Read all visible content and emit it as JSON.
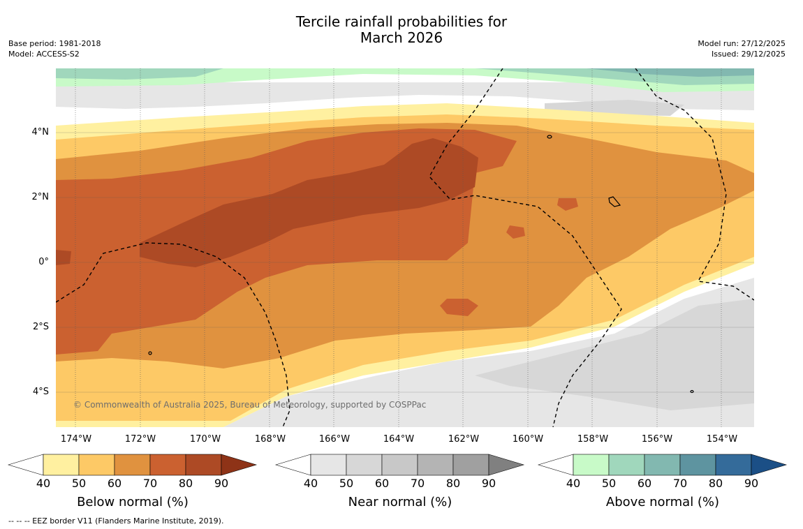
{
  "title": {
    "line1": "Tercile rainfall probabilities for",
    "line2": "March 2026"
  },
  "meta": {
    "base_period": "Base period: 1981-2018",
    "model": "Model: ACCESS-S2",
    "model_run": "Model run: 27/12/2025",
    "issued": "Issued: 29/12/2025"
  },
  "axes": {
    "lat_labels": [
      "4°N",
      "2°N",
      "0°",
      "2°S",
      "4°S"
    ],
    "lon_labels": [
      "174°W",
      "172°W",
      "170°W",
      "168°W",
      "166°W",
      "164°W",
      "162°W",
      "160°W",
      "158°W",
      "156°W",
      "154°W"
    ]
  },
  "map": {
    "copyright": "© Commonwealth of Australia 2025, Bureau of Meteorology, supported by COSPPac"
  },
  "colorbars": [
    {
      "label": "Below normal (%)",
      "ticks": [
        "40",
        "50",
        "60",
        "70",
        "80",
        "90"
      ],
      "colors": [
        "#ffffff",
        "#fff0a0",
        "#fdc966",
        "#e0923f",
        "#cb6130",
        "#ad4a25",
        "#8e3317"
      ]
    },
    {
      "label": "Near normal (%)",
      "ticks": [
        "40",
        "50",
        "60",
        "70",
        "80",
        "90"
      ],
      "colors": [
        "#ffffff",
        "#e6e6e6",
        "#d7d7d7",
        "#c8c8c8",
        "#b4b4b4",
        "#a0a0a0",
        "#808080"
      ]
    },
    {
      "label": "Above normal (%)",
      "ticks": [
        "40",
        "50",
        "60",
        "70",
        "80",
        "90"
      ],
      "colors": [
        "#ffffff",
        "#c8fac8",
        "#a0d7bc",
        "#82b8b0",
        "#5e94a0",
        "#346b9a",
        "#1b4f86"
      ]
    }
  ],
  "legend_note": "--  --  -- EEZ border V11 (Flanders Marine Institute, 2019)."
}
